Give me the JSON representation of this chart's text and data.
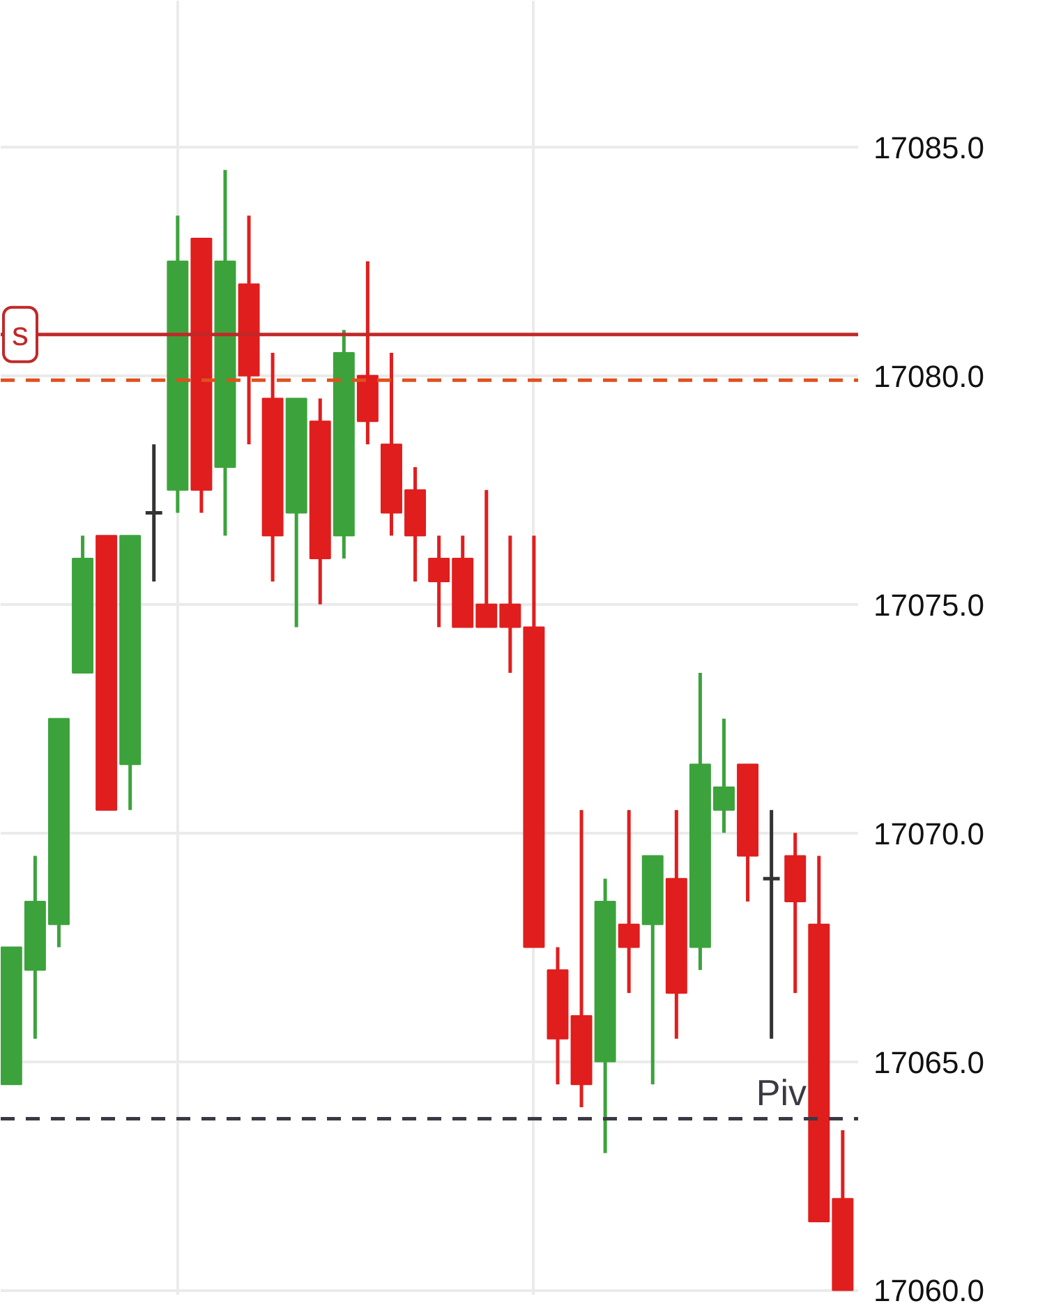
{
  "chart_data": {
    "type": "candlestick",
    "categories": [
      null,
      null,
      null,
      null,
      null,
      null,
      null,
      null,
      null,
      null,
      null,
      null,
      null,
      null,
      null,
      null,
      null,
      null,
      null,
      null,
      null,
      null,
      null,
      null,
      null,
      null,
      null,
      null,
      null,
      null,
      null,
      null,
      null,
      null,
      null,
      null
    ],
    "ohlc": [
      [
        17064.5,
        17067.5,
        17064.5,
        17067.5
      ],
      [
        17067.0,
        17069.5,
        17065.5,
        17068.5
      ],
      [
        17068.0,
        17072.5,
        17067.5,
        17072.5
      ],
      [
        17073.5,
        17076.5,
        17073.5,
        17076.0
      ],
      [
        17076.5,
        17076.5,
        17070.5,
        17070.5
      ],
      [
        17071.5,
        17076.5,
        17070.5,
        17076.5
      ],
      [
        17077.0,
        17078.5,
        17075.5,
        17077.0
      ],
      [
        17077.5,
        17083.5,
        17077.0,
        17082.5
      ],
      [
        17083.0,
        17083.0,
        17077.0,
        17077.5
      ],
      [
        17078.0,
        17084.5,
        17076.5,
        17082.5
      ],
      [
        17082.0,
        17083.5,
        17078.5,
        17080.0
      ],
      [
        17079.5,
        17080.5,
        17075.5,
        17076.5
      ],
      [
        17077.0,
        17079.5,
        17074.5,
        17079.5
      ],
      [
        17079.0,
        17079.5,
        17075.0,
        17076.0
      ],
      [
        17076.5,
        17081.0,
        17076.0,
        17080.5
      ],
      [
        17080.0,
        17082.5,
        17078.5,
        17079.0
      ],
      [
        17078.5,
        17080.5,
        17076.5,
        17077.0
      ],
      [
        17077.5,
        17078.0,
        17075.5,
        17076.5
      ],
      [
        17076.0,
        17076.5,
        17074.5,
        17075.5
      ],
      [
        17076.0,
        17076.5,
        17074.5,
        17074.5
      ],
      [
        17075.0,
        17077.5,
        17074.5,
        17074.5
      ],
      [
        17075.0,
        17076.5,
        17073.5,
        17074.5
      ],
      [
        17074.5,
        17076.5,
        17067.5,
        17067.5
      ],
      [
        17067.0,
        17067.5,
        17064.5,
        17065.5
      ],
      [
        17066.0,
        17070.5,
        17064.0,
        17064.5
      ],
      [
        17065.0,
        17069.0,
        17063.0,
        17068.5
      ],
      [
        17068.0,
        17070.5,
        17066.5,
        17067.5
      ],
      [
        17068.0,
        17069.5,
        17064.5,
        17069.5
      ],
      [
        17069.0,
        17070.5,
        17065.5,
        17066.5
      ],
      [
        17067.5,
        17073.5,
        17067.0,
        17071.5
      ],
      [
        17070.5,
        17072.5,
        17070.0,
        17071.0
      ],
      [
        17071.5,
        17071.5,
        17068.5,
        17069.5
      ],
      [
        17069.0,
        17070.5,
        17065.5,
        17069.0
      ],
      [
        17069.5,
        17070.0,
        17066.5,
        17068.5
      ],
      [
        17068.0,
        17069.5,
        17061.5,
        17061.5
      ],
      [
        17062.0,
        17063.5,
        17060.0,
        17060.0
      ]
    ],
    "colors": [
      "#3ca33c",
      "#3ca33c",
      "#3ca33c",
      "#3ca33c",
      "#e01e1e",
      "#3ca33c",
      "#333333",
      "#3ca33c",
      "#e01e1e",
      "#3ca33c",
      "#e01e1e",
      "#e01e1e",
      "#3ca33c",
      "#e01e1e",
      "#3ca33c",
      "#e01e1e",
      "#e01e1e",
      "#e01e1e",
      "#e01e1e",
      "#e01e1e",
      "#e01e1e",
      "#e01e1e",
      "#e01e1e",
      "#e01e1e",
      "#e01e1e",
      "#3ca33c",
      "#e01e1e",
      "#3ca33c",
      "#e01e1e",
      "#3ca33c",
      "#3ca33c",
      "#e01e1e",
      "#333333",
      "#e01e1e",
      "#e01e1e",
      "#e01e1e"
    ],
    "ylim": [
      17059.9,
      17088.2
    ],
    "yticks": [
      {
        "value": 17060,
        "label": "17060.0"
      },
      {
        "value": 17065,
        "label": "17065.0"
      },
      {
        "value": 17070,
        "label": "17070.0"
      },
      {
        "value": 17075,
        "label": "17075.0"
      },
      {
        "value": 17080,
        "label": "17080.0"
      },
      {
        "value": 17085,
        "label": "17085.0"
      }
    ],
    "ref_lines": [
      {
        "axis": "y",
        "value": 17080.9,
        "label": "s",
        "color": "#c0292a",
        "line_style": "solid"
      },
      {
        "axis": "y",
        "value": 17079.9,
        "color": "#e0501e",
        "line_style": "dashed"
      },
      {
        "axis": "y",
        "value": 17063.75,
        "label": "Piv",
        "color": "#3a3a44",
        "line_style": "dashed"
      }
    ],
    "grid": true,
    "tick_labels": "y"
  }
}
